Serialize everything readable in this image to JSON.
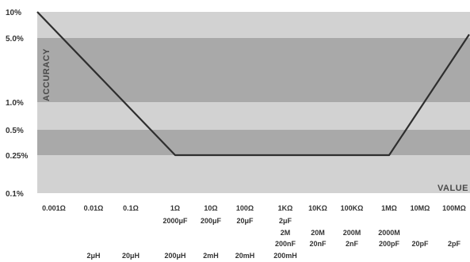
{
  "chart_data": {
    "type": "line",
    "xlabel": "VALUE",
    "ylabel": "ACCURACY",
    "grid": false,
    "y_scale": "log",
    "y_ticks": [
      "10%",
      "5.0%",
      "1.0%",
      "0.5%",
      "0.25%",
      "0.1%"
    ],
    "bands": [
      {
        "from": "5.0%",
        "to": "10%",
        "color": "#d2d2d2"
      },
      {
        "from": "1.0%",
        "to": "5.0%",
        "color": "#a9a9a9"
      },
      {
        "from": "0.5%",
        "to": "1.0%",
        "color": "#d2d2d2"
      },
      {
        "from": "0.25%",
        "to": "0.5%",
        "color": "#a9a9a9"
      },
      {
        "from": "0.1%",
        "to": "0.25%",
        "color": "#d2d2d2"
      }
    ],
    "line_color": "#2e2e2e",
    "x_categories": [
      {
        "resistance": "0.001Ω",
        "capacitance": "",
        "cap2": "",
        "inductance": ""
      },
      {
        "resistance": "0.01Ω",
        "capacitance": "",
        "cap2": "",
        "inductance": "2μH"
      },
      {
        "resistance": "0.1Ω",
        "capacitance": "",
        "cap2": "",
        "inductance": "20μH"
      },
      {
        "resistance": "1Ω",
        "capacitance": "2000μF",
        "cap2": "",
        "inductance": "200μH"
      },
      {
        "resistance": "10Ω",
        "capacitance": "200μF",
        "cap2": "",
        "inductance": "2mH"
      },
      {
        "resistance": "100Ω",
        "capacitance": "20μF",
        "cap2": "",
        "inductance": "20mH"
      },
      {
        "resistance": "1KΩ",
        "capacitance": "2μF",
        "cap2": "2M\n200nF",
        "inductance": "200mH"
      },
      {
        "resistance": "10KΩ",
        "capacitance": "",
        "cap2": "20M\n20nF",
        "inductance": ""
      },
      {
        "resistance": "100KΩ",
        "capacitance": "",
        "cap2": "200M\n2nF",
        "inductance": ""
      },
      {
        "resistance": "1MΩ",
        "capacitance": "",
        "cap2": "2000M\n200pF",
        "inductance": ""
      },
      {
        "resistance": "10MΩ",
        "capacitance": "",
        "cap2": "20pF",
        "inductance": ""
      },
      {
        "resistance": "100MΩ",
        "capacitance": "",
        "cap2": "2pF",
        "inductance": ""
      }
    ],
    "series": [
      {
        "points": [
          {
            "x": "0.001Ω",
            "y": 10
          },
          {
            "x": "1Ω",
            "y": 0.25
          },
          {
            "x": "1MΩ",
            "y": 0.25
          },
          {
            "x": "100MΩ",
            "y": 5.5
          }
        ]
      }
    ]
  }
}
